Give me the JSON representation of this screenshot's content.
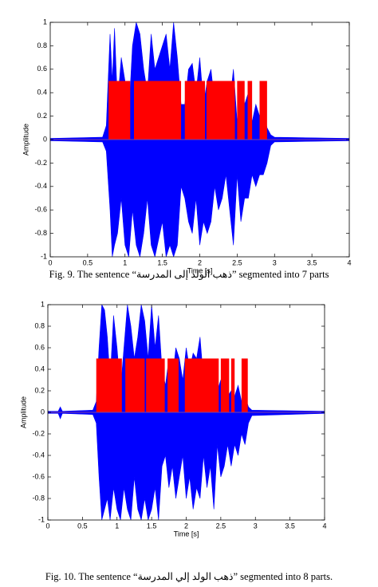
{
  "chart_data": [
    {
      "type": "waveform",
      "xlabel": "Time [s]",
      "ylabel": "Amplitude",
      "xlim": [
        0,
        4
      ],
      "ylim": [
        -1,
        1
      ],
      "xticks": [
        0,
        0.5,
        1,
        1.5,
        2,
        2.5,
        3,
        3.5,
        4
      ],
      "yticks": [
        -1,
        -0.8,
        -0.6,
        -0.4,
        -0.2,
        0,
        0.2,
        0.4,
        0.6,
        0.8,
        1
      ],
      "waveform": {
        "color": "#0000ff",
        "x": [
          0,
          0.7,
          0.75,
          0.8,
          0.83,
          0.86,
          0.9,
          0.95,
          1.0,
          1.05,
          1.1,
          1.15,
          1.2,
          1.25,
          1.3,
          1.35,
          1.4,
          1.5,
          1.55,
          1.6,
          1.65,
          1.7,
          1.75,
          1.8,
          1.85,
          1.9,
          1.95,
          2.0,
          2.05,
          2.1,
          2.15,
          2.2,
          2.25,
          2.3,
          2.35,
          2.4,
          2.45,
          2.5,
          2.55,
          2.6,
          2.65,
          2.7,
          2.75,
          2.8,
          2.85,
          2.9,
          2.95,
          3.0,
          4.0
        ],
        "upper": [
          0.01,
          0.02,
          0.12,
          0.9,
          0.5,
          0.95,
          0.3,
          0.7,
          0.5,
          0.2,
          0.8,
          1,
          0.9,
          0.6,
          0.4,
          0.9,
          0.6,
          0.8,
          0.9,
          0.6,
          1,
          0.7,
          0.3,
          0.3,
          0.6,
          0.65,
          0.4,
          0.7,
          0.3,
          0.5,
          0.6,
          0.3,
          0.5,
          0.4,
          0.2,
          0.3,
          0.6,
          0.15,
          0.5,
          0.3,
          0.4,
          0.15,
          0.3,
          0.2,
          0.25,
          0.1,
          0.04,
          0.02,
          0.01
        ],
        "lower": [
          -0.01,
          -0.02,
          -0.1,
          -0.6,
          -1,
          -0.9,
          -0.8,
          -0.5,
          -0.9,
          -1,
          -0.6,
          -0.9,
          -1,
          -0.8,
          -0.5,
          -0.9,
          -1,
          -0.7,
          -1,
          -0.9,
          -1,
          -0.9,
          -0.4,
          -0.5,
          -0.7,
          -0.8,
          -0.5,
          -0.9,
          -0.7,
          -0.8,
          -0.7,
          -0.4,
          -0.6,
          -0.5,
          -0.3,
          -0.6,
          -0.9,
          -0.3,
          -0.7,
          -0.5,
          -0.5,
          -0.3,
          -0.4,
          -0.3,
          -0.3,
          -0.2,
          -0.05,
          -0.02,
          -0.01
        ]
      },
      "segments": {
        "color": "#ff0000",
        "height": 0.5,
        "starts": [
          0.78,
          1.12,
          1.8,
          2.09,
          2.5,
          2.64,
          2.8
        ],
        "ends": [
          1.07,
          1.75,
          2.07,
          2.47,
          2.6,
          2.7,
          2.9
        ]
      },
      "caption": "Fig.  9. The sentence “ذهب الولد إلى المدرسة” segmented into 7 parts"
    },
    {
      "type": "waveform",
      "xlabel": "Time [s]",
      "ylabel": "Amplitude",
      "xlim": [
        0,
        4
      ],
      "ylim": [
        -1,
        1
      ],
      "xticks": [
        0,
        0.5,
        1,
        1.5,
        2,
        2.5,
        3,
        3.5,
        4
      ],
      "yticks": [
        -1,
        -0.8,
        -0.6,
        -0.4,
        -0.2,
        0,
        0.2,
        0.4,
        0.6,
        0.8,
        1
      ],
      "waveform": {
        "color": "#0000ff",
        "x": [
          0,
          0.15,
          0.18,
          0.21,
          0.65,
          0.7,
          0.74,
          0.78,
          0.82,
          0.86,
          0.9,
          0.95,
          1.0,
          1.05,
          1.1,
          1.15,
          1.2,
          1.25,
          1.3,
          1.35,
          1.4,
          1.45,
          1.5,
          1.55,
          1.6,
          1.65,
          1.7,
          1.75,
          1.8,
          1.85,
          1.9,
          1.95,
          2.0,
          2.05,
          2.1,
          2.15,
          2.2,
          2.25,
          2.3,
          2.35,
          2.4,
          2.45,
          2.5,
          2.55,
          2.6,
          2.65,
          2.7,
          2.75,
          2.8,
          2.85,
          2.9,
          2.95,
          4.0
        ],
        "upper": [
          0.01,
          0.01,
          0.05,
          0.01,
          0.02,
          0.1,
          0.6,
          1,
          0.95,
          0.7,
          0.3,
          0.9,
          0.6,
          0.2,
          0.6,
          1,
          0.8,
          0.5,
          0.7,
          1,
          0.85,
          0.5,
          1,
          0.6,
          0.9,
          0.4,
          0.25,
          0.5,
          0.3,
          0.6,
          0.5,
          0.3,
          0.6,
          0.4,
          0.55,
          0.5,
          0.7,
          0.3,
          0.5,
          0.3,
          0.45,
          0.2,
          0.3,
          0.35,
          0.15,
          0.2,
          0.15,
          0.25,
          0.1,
          0.15,
          0.05,
          0.02,
          0.01
        ],
        "lower": [
          -0.01,
          -0.01,
          -0.06,
          -0.01,
          -0.02,
          -0.1,
          -0.6,
          -1,
          -0.9,
          -0.8,
          -1,
          -0.7,
          -0.9,
          -1,
          -0.7,
          -0.9,
          -1,
          -0.6,
          -0.9,
          -1,
          -0.8,
          -1,
          -0.9,
          -0.7,
          -1,
          -0.5,
          -0.4,
          -0.7,
          -0.5,
          -0.8,
          -0.6,
          -0.4,
          -0.8,
          -0.6,
          -0.9,
          -0.7,
          -0.8,
          -0.4,
          -0.7,
          -0.5,
          -0.9,
          -0.3,
          -0.6,
          -0.5,
          -0.3,
          -0.5,
          -0.3,
          -0.4,
          -0.2,
          -0.3,
          -0.1,
          -0.03,
          -0.01
        ]
      },
      "segments": {
        "color": "#ff0000",
        "height": 0.5,
        "starts": [
          0.7,
          1.12,
          1.42,
          1.73,
          1.98,
          2.5,
          2.65,
          2.8
        ],
        "ends": [
          1.07,
          1.4,
          1.69,
          1.89,
          2.47,
          2.62,
          2.7,
          2.89
        ]
      },
      "caption": "Fig. 10. The sentence “ذهب الولد إلي المدرسة” segmented into 8 parts."
    }
  ]
}
